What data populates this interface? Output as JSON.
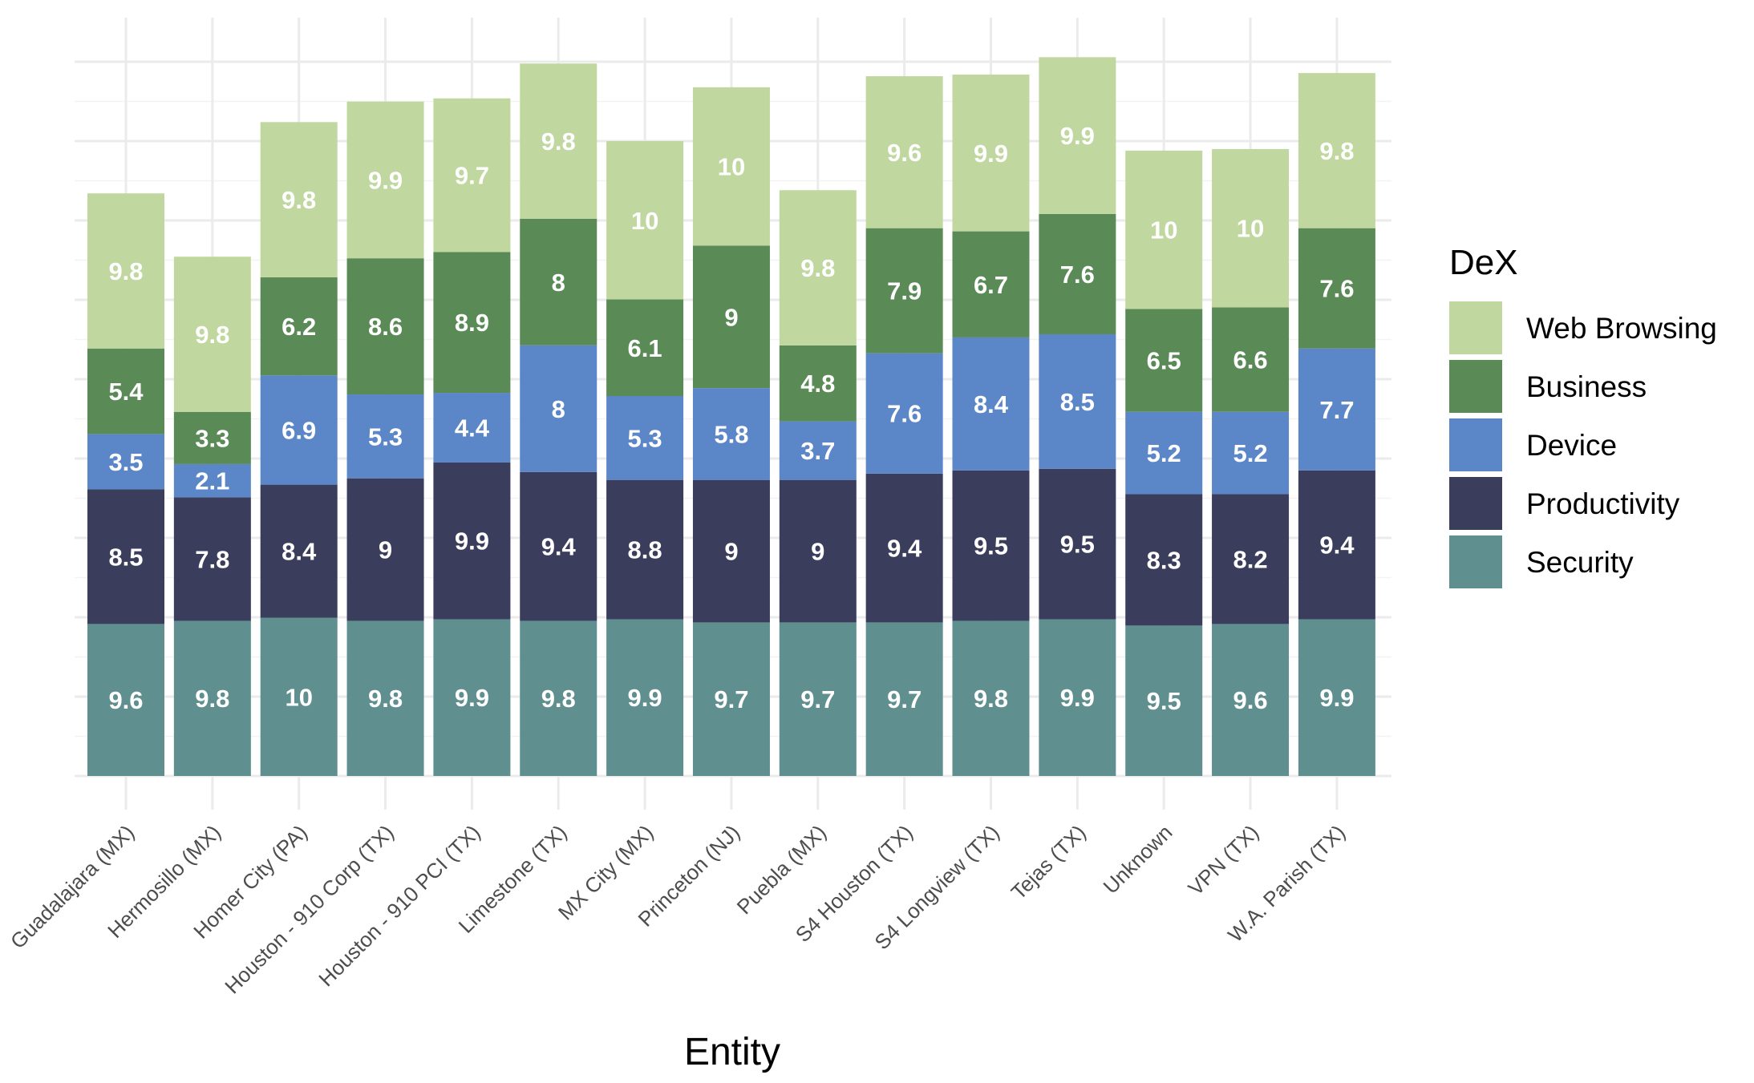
{
  "chart_data": {
    "type": "bar",
    "stacked": true,
    "xlabel": "Entity",
    "ylabel": "",
    "grid": true,
    "legend": {
      "title": "DeX",
      "position": "right"
    },
    "categories": [
      "Guadalajara (MX)",
      "Hermosillo (MX)",
      "Homer City (PA)",
      "Houston - 910 Corp (TX)",
      "Houston - 910 PCI (TX)",
      "Limestone (TX)",
      "MX City (MX)",
      "Princeton (NJ)",
      "Puebla (MX)",
      "S4 Houston (TX)",
      "S4 Longview (TX)",
      "Tejas (TX)",
      "Unknown",
      "VPN (TX)",
      "W.A. Parish (TX)"
    ],
    "series": [
      {
        "name": "Security",
        "color": "#5f8f8f",
        "values": [
          9.6,
          9.8,
          10,
          9.8,
          9.9,
          9.8,
          9.9,
          9.7,
          9.7,
          9.7,
          9.8,
          9.9,
          9.5,
          9.6,
          9.9
        ]
      },
      {
        "name": "Productivity",
        "color": "#3b3d5c",
        "values": [
          8.5,
          7.8,
          8.4,
          9,
          9.9,
          9.4,
          8.8,
          9,
          9,
          9.4,
          9.5,
          9.5,
          8.3,
          8.2,
          9.4
        ]
      },
      {
        "name": "Device",
        "color": "#5b86c8",
        "values": [
          3.5,
          2.1,
          6.9,
          5.3,
          4.4,
          8,
          5.3,
          5.8,
          3.7,
          7.6,
          8.4,
          8.5,
          5.2,
          5.2,
          7.7
        ]
      },
      {
        "name": "Business",
        "color": "#5a8a56",
        "values": [
          5.4,
          3.3,
          6.2,
          8.6,
          8.9,
          8,
          6.1,
          9,
          4.8,
          7.9,
          6.7,
          7.6,
          6.5,
          6.6,
          7.6
        ]
      },
      {
        "name": "Web Browsing",
        "color": "#c0d8a0",
        "values": [
          9.8,
          9.8,
          9.8,
          9.9,
          9.7,
          9.8,
          10,
          10,
          9.8,
          9.6,
          9.9,
          9.9,
          10,
          10,
          9.8
        ]
      }
    ],
    "legend_order": [
      "Web Browsing",
      "Business",
      "Device",
      "Productivity",
      "Security"
    ]
  }
}
